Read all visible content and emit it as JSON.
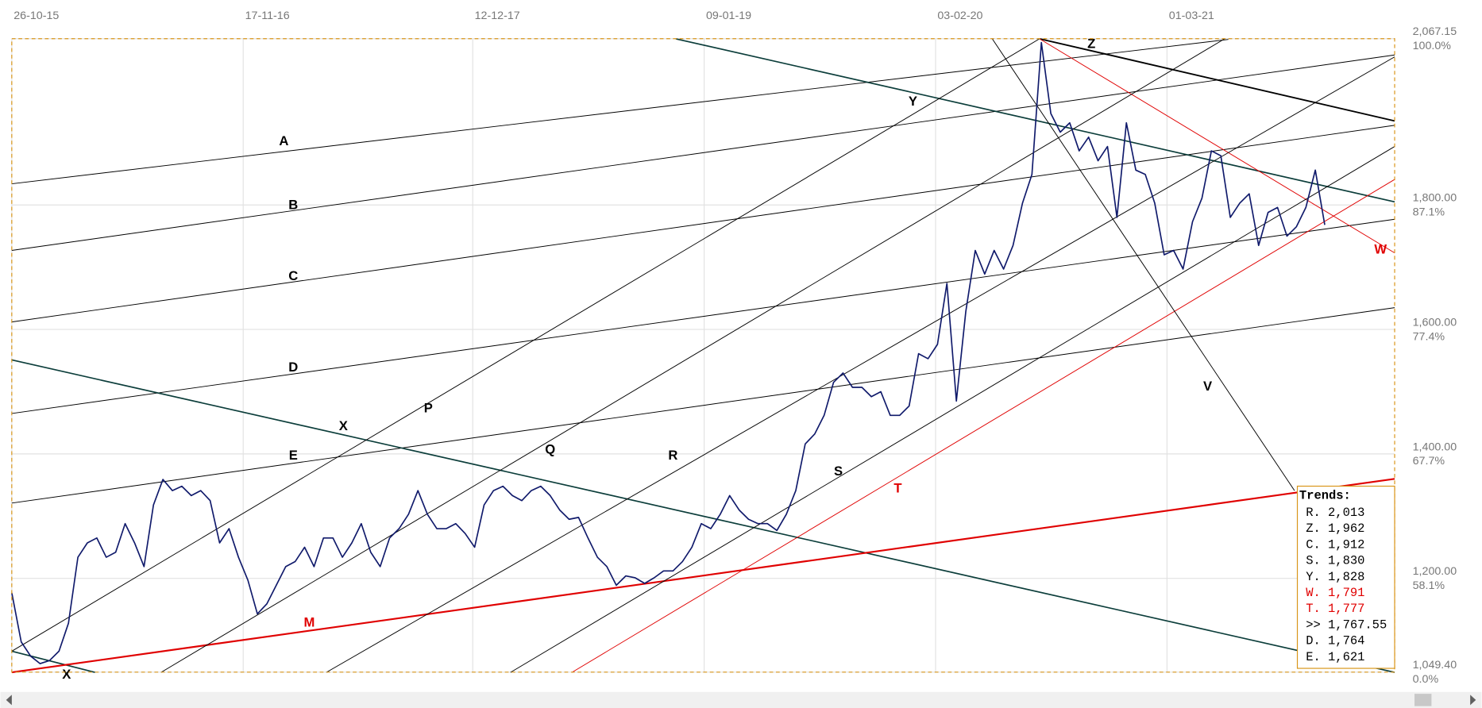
{
  "chart_data": {
    "type": "line",
    "xlim": [
      0,
      146.4
    ],
    "xticks": [
      {
        "value": 0,
        "label": "26-10-15"
      },
      {
        "value": 24.5,
        "label": "17-11-16"
      },
      {
        "value": 48.8,
        "label": "12-12-17"
      },
      {
        "value": 73.3,
        "label": "09-01-19"
      },
      {
        "value": 97.8,
        "label": "03-02-20"
      },
      {
        "value": 122.3,
        "label": "01-03-21"
      }
    ],
    "ylim": [
      1049.4,
      2067.15
    ],
    "yticks": [
      {
        "value": 2067.15,
        "label": "2,067.15"
      },
      {
        "value": 1800,
        "label": "1,800.00"
      },
      {
        "value": 1600,
        "label": "1,600.00"
      },
      {
        "value": 1400,
        "label": "1,400.00"
      },
      {
        "value": 1200,
        "label": "1,200.00"
      },
      {
        "value": 1049.4,
        "label": "1,049.40"
      }
    ],
    "pct_ticks": [
      {
        "value": 2067.15,
        "label": "100.0%"
      },
      {
        "value": 1800,
        "label": "87.1%"
      },
      {
        "value": 1600,
        "label": "77.4%"
      },
      {
        "value": 1400,
        "label": "67.7%"
      },
      {
        "value": 1200,
        "label": "58.1%"
      },
      {
        "value": 1049.4,
        "label": "0.0%"
      }
    ],
    "grid": true,
    "series": [
      {
        "color": "#101a6b",
        "values": [
          1177,
          1098,
          1075,
          1063,
          1068,
          1083,
          1128,
          1234,
          1257,
          1265,
          1234,
          1242,
          1288,
          1257,
          1219,
          1318,
          1359,
          1341,
          1348,
          1333,
          1341,
          1325,
          1257,
          1280,
          1234,
          1197,
          1143,
          1159,
          1189,
          1219,
          1227,
          1250,
          1219,
          1265,
          1265,
          1234,
          1257,
          1288,
          1242,
          1219,
          1265,
          1280,
          1303,
          1341,
          1303,
          1280,
          1280,
          1288,
          1272,
          1250,
          1318,
          1341,
          1348,
          1333,
          1325,
          1341,
          1348,
          1333,
          1310,
          1295,
          1298,
          1265,
          1234,
          1219,
          1189,
          1204,
          1201,
          1192,
          1201,
          1212,
          1212,
          1227,
          1250,
          1288,
          1280,
          1303,
          1333,
          1310,
          1295,
          1288,
          1288,
          1277,
          1303,
          1341,
          1416,
          1432,
          1462,
          1515,
          1530,
          1507,
          1507,
          1492,
          1500,
          1462,
          1462,
          1477,
          1561,
          1553,
          1576,
          1674,
          1485,
          1629,
          1727,
          1689,
          1727,
          1697,
          1735,
          1803,
          1849,
          2061,
          1947,
          1917,
          1932,
          1887,
          1909,
          1871,
          1894,
          1780,
          1932,
          1856,
          1849,
          1803,
          1720,
          1727,
          1697,
          1773,
          1811,
          1887,
          1879,
          1780,
          1803,
          1818,
          1735,
          1788,
          1796,
          1750,
          1765,
          1796,
          1856,
          1768
        ]
      }
    ],
    "trendlines": [
      {
        "label": "A",
        "color": "#000000",
        "label_color": "#000000",
        "width": 0.8,
        "x": [
          0,
          128.8
        ],
        "y": [
          1834,
          2066
        ]
      },
      {
        "label": "B",
        "color": "#000000",
        "label_color": "#000000",
        "width": 0.8,
        "x": [
          0,
          146.4
        ],
        "y": [
          1727,
          2041
        ]
      },
      {
        "label": "C",
        "color": "#000000",
        "label_color": "#000000",
        "width": 0.8,
        "x": [
          0,
          146.4
        ],
        "y": [
          1612,
          1928
        ]
      },
      {
        "label": "D",
        "color": "#000000",
        "label_color": "#000000",
        "width": 0.8,
        "x": [
          0,
          146.4
        ],
        "y": [
          1465,
          1777
        ]
      },
      {
        "label": "E",
        "color": "#000000",
        "label_color": "#000000",
        "width": 0.8,
        "x": [
          0,
          146.4
        ],
        "y": [
          1321,
          1635
        ]
      },
      {
        "label": "Z",
        "color": "#000000",
        "label_color": "#000000",
        "width": 1.6,
        "x": [
          108.8,
          146.4
        ],
        "y": [
          2067,
          1935
        ]
      },
      {
        "label": "Y",
        "color": "#0b3d3a",
        "label_color": "#000000",
        "width": 1.4,
        "x": [
          70.3,
          146.4
        ],
        "y": [
          2067,
          1805
        ]
      },
      {
        "label": "X",
        "color": "#0b3d3a",
        "label_color": "#000000",
        "width": 1.4,
        "x": [
          0,
          146.4
        ],
        "y": [
          1551,
          1049
        ]
      },
      {
        "label": "X",
        "color": "#0b3d3a",
        "label_color": "#000000",
        "width": 1.4,
        "x": [
          0,
          8.8
        ],
        "y": [
          1083,
          1049
        ]
      },
      {
        "label": "M",
        "color": "#e00000",
        "label_color": "#e00000",
        "width": 1.8,
        "x": [
          0,
          146.4
        ],
        "y": [
          1049,
          1360
        ]
      },
      {
        "label": "T",
        "color": "#e00000",
        "label_color": "#e00000",
        "width": 0.8,
        "x": [
          59.3,
          146.4
        ],
        "y": [
          1049,
          1841
        ]
      },
      {
        "label": "W",
        "color": "#e00000",
        "label_color": "#e00000",
        "width": 0.8,
        "x": [
          108.8,
          146.4
        ],
        "y": [
          2067,
          1723
        ]
      },
      {
        "label": "V",
        "color": "#000000",
        "label_color": "#000000",
        "width": 0.8,
        "x": [
          103.8,
          135.8
        ],
        "y": [
          2067,
          1341
        ]
      },
      {
        "label": "P",
        "color": "#000000",
        "label_color": "#000000",
        "width": 0.8,
        "x": [
          0,
          108.8
        ],
        "y": [
          1083,
          2067
        ]
      },
      {
        "label": "Q",
        "color": "#000000",
        "label_color": "#000000",
        "width": 0.8,
        "x": [
          15.8,
          128.4
        ],
        "y": [
          1049,
          2067
        ]
      },
      {
        "label": "R",
        "color": "#000000",
        "label_color": "#000000",
        "width": 0.8,
        "x": [
          33.3,
          146.4
        ],
        "y": [
          1049,
          2038
        ]
      },
      {
        "label": "S",
        "color": "#000000",
        "label_color": "#000000",
        "width": 0.8,
        "x": [
          52.8,
          146.4
        ],
        "y": [
          1049,
          1894
        ]
      }
    ],
    "trends_box": {
      "title": "Trends:",
      "rows": [
        {
          "text": "R. 2,013",
          "color": "#000000"
        },
        {
          "text": "Z. 1,962",
          "color": "#000000"
        },
        {
          "text": "C. 1,912",
          "color": "#000000"
        },
        {
          "text": "S. 1,830",
          "color": "#000000"
        },
        {
          "text": "Y. 1,828",
          "color": "#000000"
        },
        {
          "text": "W. 1,791",
          "color": "#e00000"
        },
        {
          "text": "T. 1,777",
          "color": "#e00000"
        },
        {
          "text": ">> 1,767.55",
          "color": "#000000"
        },
        {
          "text": "D. 1,764",
          "color": "#000000"
        },
        {
          "text": "E. 1,621",
          "color": "#000000"
        }
      ]
    }
  }
}
